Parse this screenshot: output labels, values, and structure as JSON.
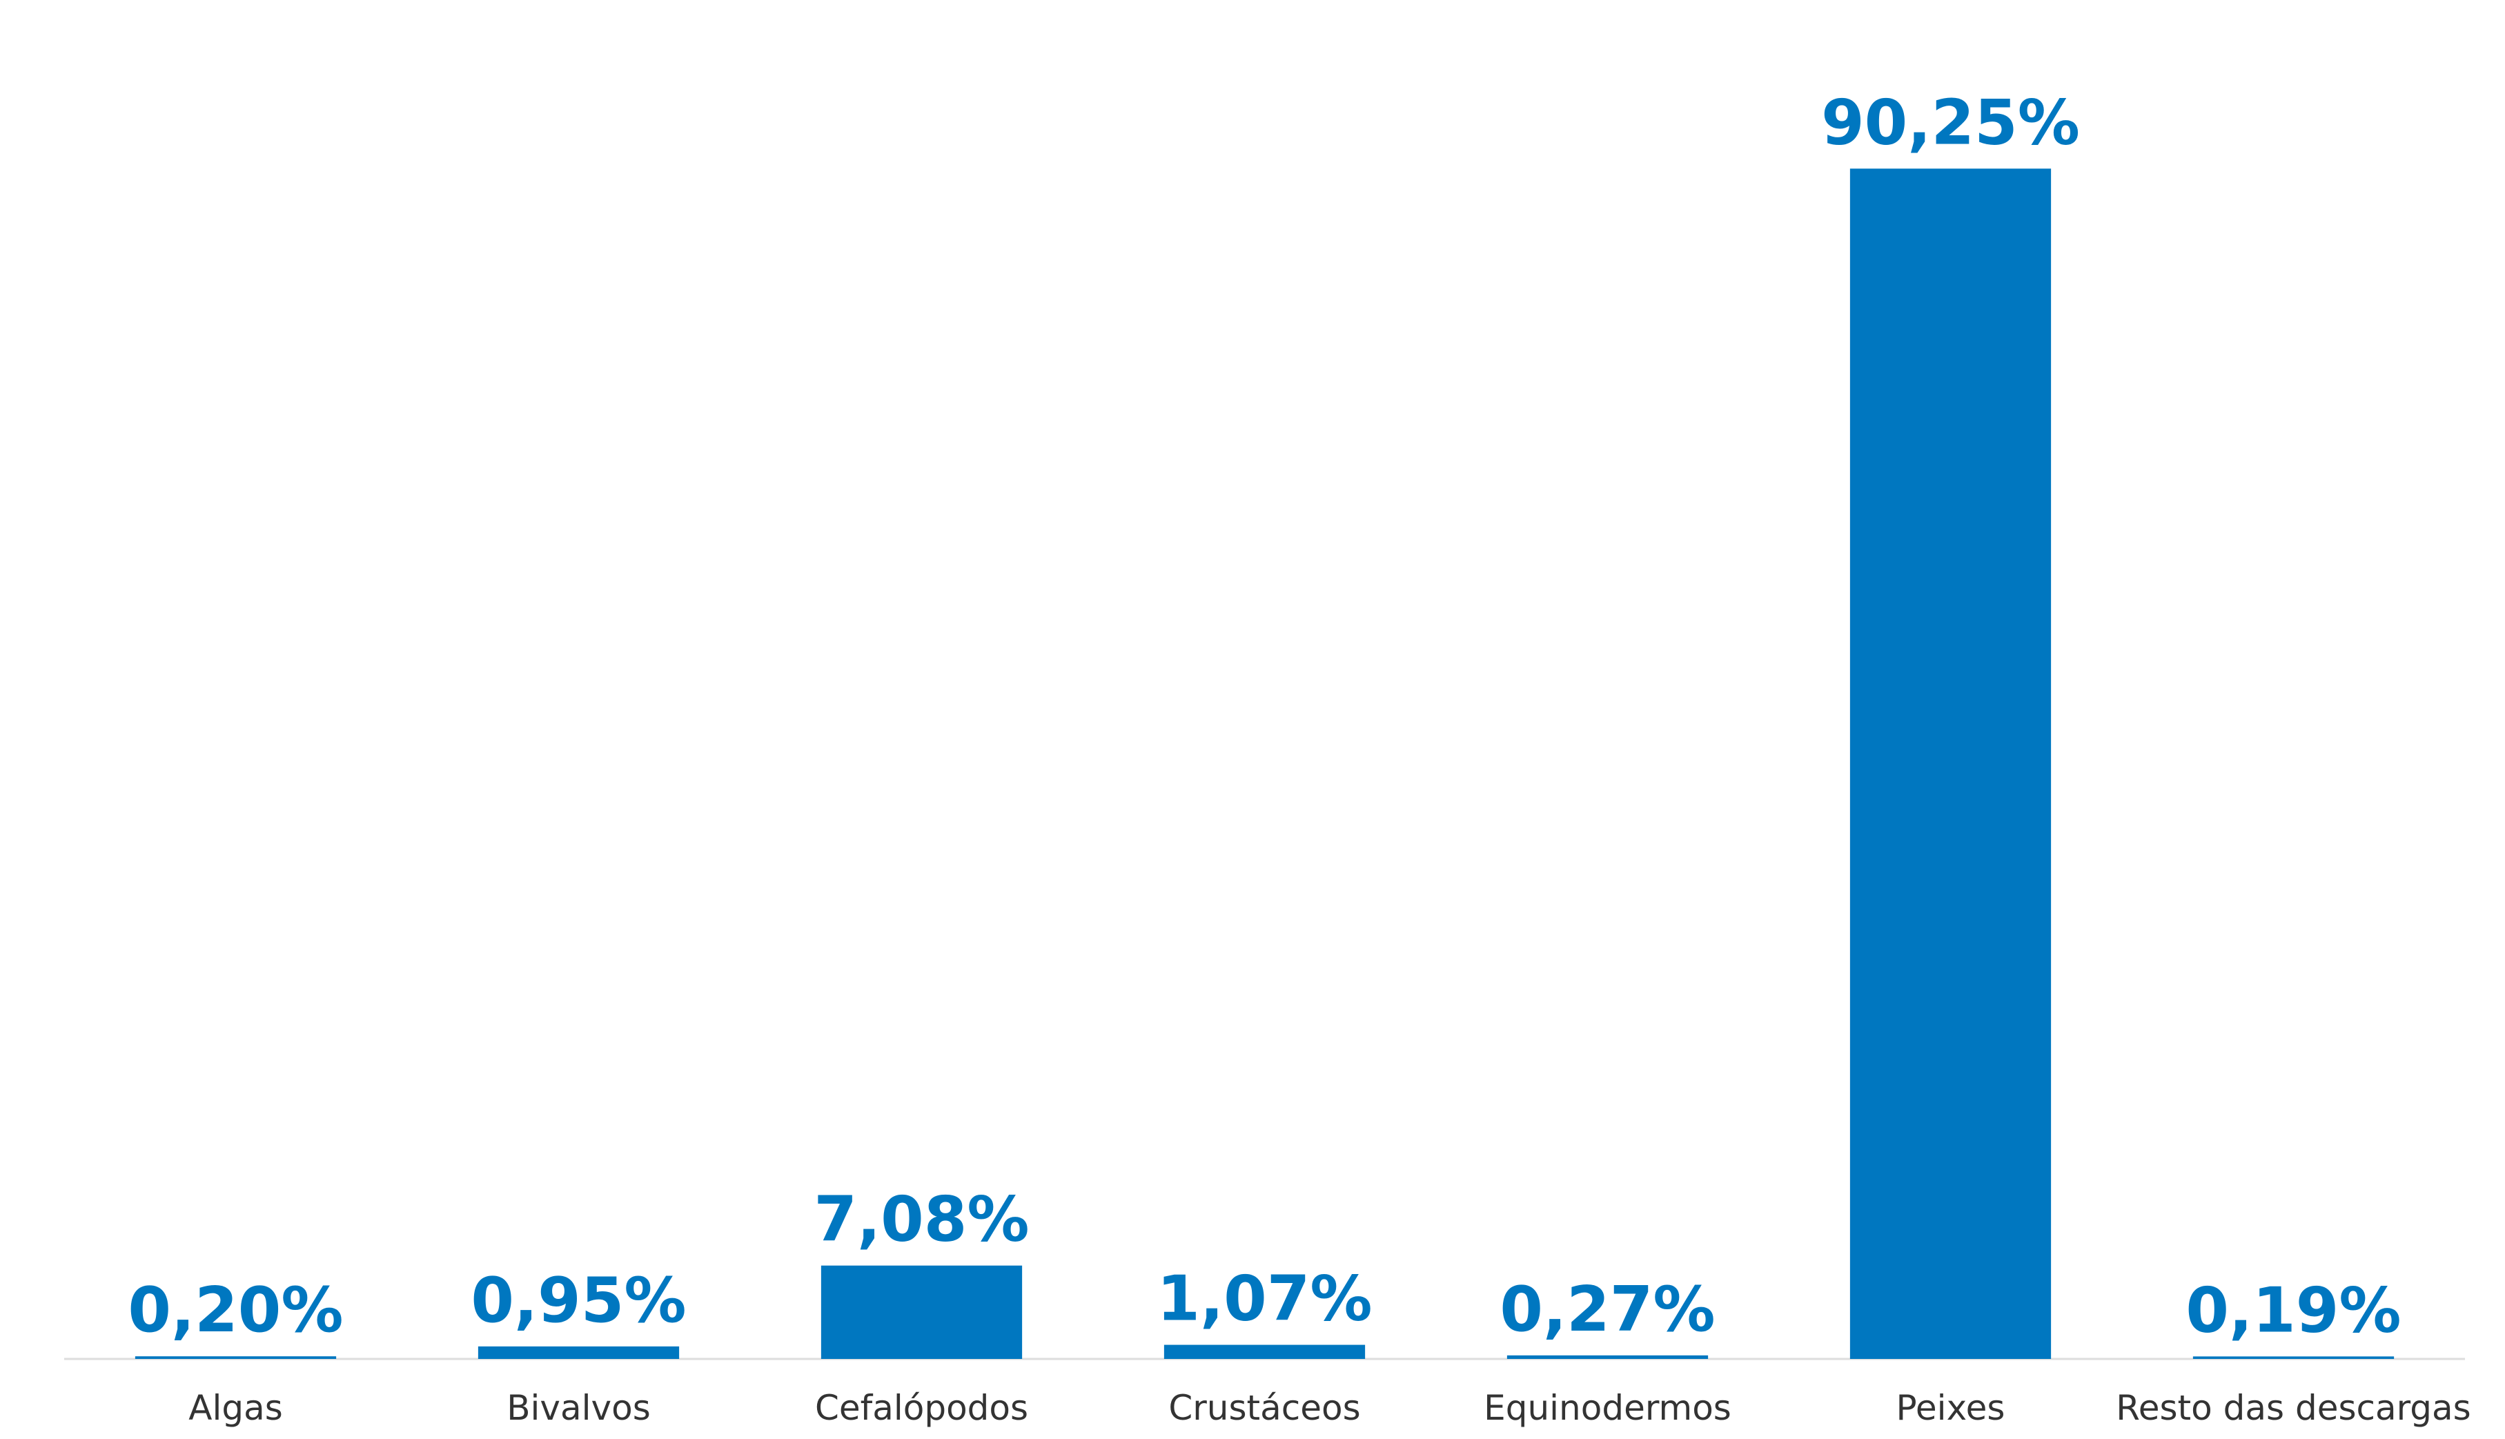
{
  "chart_data": {
    "type": "bar",
    "categories": [
      "Algas",
      "Bivalvos",
      "Cefalópodos",
      "Crustáceos",
      "Equinodermos",
      "Peixes",
      "Resto das descargas"
    ],
    "values": [
      0.2,
      0.95,
      7.08,
      1.07,
      0.27,
      90.25,
      0.19
    ],
    "value_labels": [
      "0,20%",
      "0,95%",
      "7,08%",
      "1,07%",
      "0,27%",
      "90,25%",
      "0,19%"
    ],
    "color": "#0077c0",
    "ylim": [
      0,
      100
    ]
  }
}
